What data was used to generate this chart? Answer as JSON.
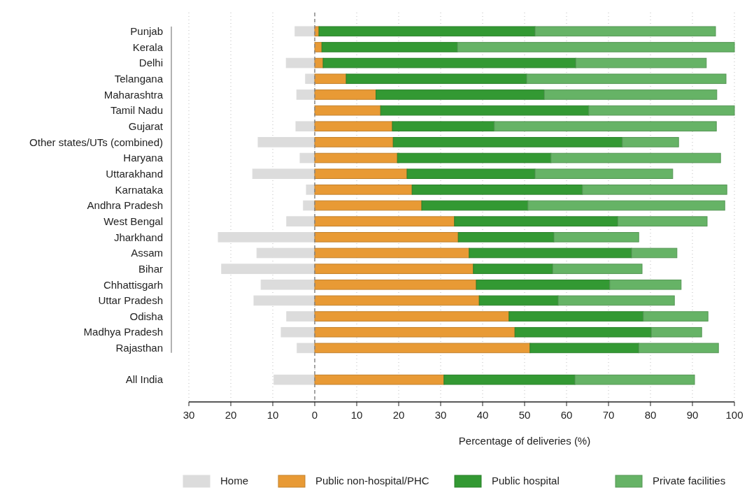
{
  "chart_data": {
    "type": "bar",
    "orientation": "horizontal",
    "stacked": true,
    "categories": [
      "Punjab",
      "Kerala",
      "Delhi",
      "Telangana",
      "Maharashtra",
      "Tamil Nadu",
      "Gujarat",
      "Other states/UTs (combined)",
      "Haryana",
      "Uttarakhand",
      "Karnataka",
      "Andhra Pradesh",
      "West Bengal",
      "Jharkhand",
      "Assam",
      "Bihar",
      "Chhattisgarh",
      "Uttar Pradesh",
      "Odisha",
      "Madhya Pradesh",
      "Rajasthan",
      null,
      "All India"
    ],
    "series": [
      {
        "name": "Home",
        "color": "#dcdcdc",
        "values": [
          -4.7,
          0,
          -6.8,
          -2.2,
          -4.3,
          0,
          -4.5,
          -13.5,
          -3.5,
          -14.8,
          -2,
          -2.7,
          -6.7,
          -23,
          -13.8,
          -22.2,
          -12.8,
          -14.5,
          -6.7,
          -8,
          -4.2,
          null,
          -9.7
        ]
      },
      {
        "name": "Public non-hospital/PHC",
        "color": "#e89a35",
        "values": [
          1,
          1.7,
          2,
          7.5,
          14.6,
          15.7,
          18.5,
          18.7,
          19.7,
          22,
          23.2,
          25.5,
          33.3,
          34.2,
          36.8,
          37.8,
          38.5,
          39.2,
          46.3,
          47.7,
          51.3,
          null,
          30.8
        ]
      },
      {
        "name": "Public hospital",
        "color": "#339933",
        "values": [
          51.5,
          32.3,
          60.2,
          43,
          40.1,
          49.6,
          24.3,
          54.6,
          36.6,
          30.5,
          40.6,
          25.3,
          38.9,
          22.8,
          38.7,
          18.9,
          31.8,
          18.8,
          32,
          32.5,
          25.9,
          null,
          31.2
        ]
      },
      {
        "name": "Private facilities",
        "color": "#66b366",
        "values": [
          43,
          66,
          31.1,
          47.5,
          41.1,
          34.7,
          52.9,
          13.4,
          40.4,
          32.8,
          34.4,
          46.9,
          21.3,
          20.2,
          10.8,
          21.3,
          17,
          27.7,
          15.4,
          12,
          19,
          null,
          28.5
        ]
      }
    ],
    "xlabel": "Percentage of deliveries (%)",
    "xlim": [
      -30,
      100
    ],
    "xticks": [
      {
        "value": -30,
        "label": "30"
      },
      {
        "value": -20,
        "label": "20"
      },
      {
        "value": -10,
        "label": "10"
      },
      0,
      10,
      20,
      30,
      40,
      50,
      60,
      70,
      80,
      90,
      100
    ],
    "grid": "x",
    "ref_lines": [
      {
        "axis": "x",
        "value": 0,
        "label": null,
        "color": "#888888",
        "line_style": "dashed"
      }
    ],
    "legend": "bottom"
  }
}
